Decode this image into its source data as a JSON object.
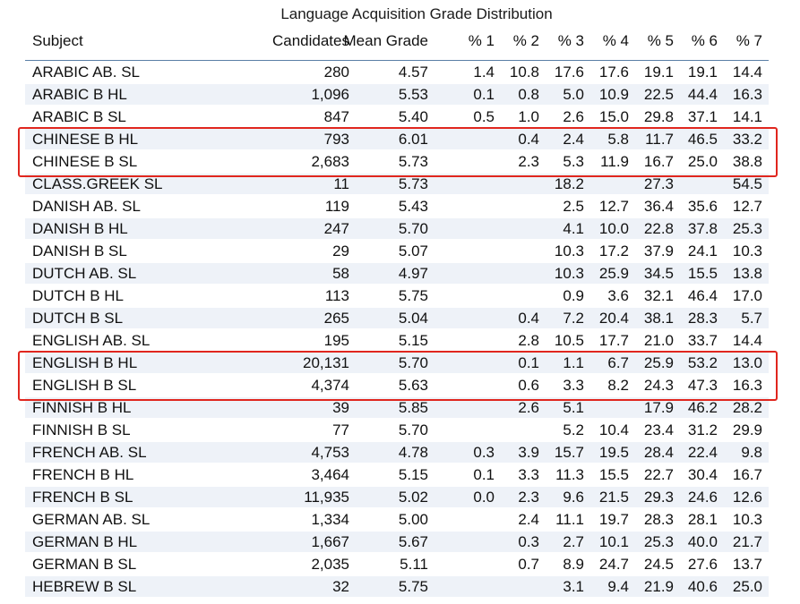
{
  "title": "Language Acquisition Grade Distribution",
  "headers": [
    "Subject",
    "Candidates",
    "Mean Grade",
    "% 1",
    "% 2",
    "% 3",
    "% 4",
    "% 5",
    "% 6",
    "% 7"
  ],
  "rows": [
    [
      "ARABIC AB. SL",
      "280",
      "4.57",
      "1.4",
      "10.8",
      "17.6",
      "17.6",
      "19.1",
      "19.1",
      "14.4"
    ],
    [
      "ARABIC B HL",
      "1,096",
      "5.53",
      "0.1",
      "0.8",
      "5.0",
      "10.9",
      "22.5",
      "44.4",
      "16.3"
    ],
    [
      "ARABIC B SL",
      "847",
      "5.40",
      "0.5",
      "1.0",
      "2.6",
      "15.0",
      "29.8",
      "37.1",
      "14.1"
    ],
    [
      "CHINESE B HL",
      "793",
      "6.01",
      "",
      "0.4",
      "2.4",
      "5.8",
      "11.7",
      "46.5",
      "33.2"
    ],
    [
      "CHINESE B SL",
      "2,683",
      "5.73",
      "",
      "2.3",
      "5.3",
      "11.9",
      "16.7",
      "25.0",
      "38.8"
    ],
    [
      "CLASS.GREEK SL",
      "11",
      "5.73",
      "",
      "",
      "18.2",
      "",
      "27.3",
      "",
      "54.5"
    ],
    [
      "DANISH AB. SL",
      "119",
      "5.43",
      "",
      "",
      "2.5",
      "12.7",
      "36.4",
      "35.6",
      "12.7"
    ],
    [
      "DANISH B HL",
      "247",
      "5.70",
      "",
      "",
      "4.1",
      "10.0",
      "22.8",
      "37.8",
      "25.3"
    ],
    [
      "DANISH B SL",
      "29",
      "5.07",
      "",
      "",
      "10.3",
      "17.2",
      "37.9",
      "24.1",
      "10.3"
    ],
    [
      "DUTCH AB. SL",
      "58",
      "4.97",
      "",
      "",
      "10.3",
      "25.9",
      "34.5",
      "15.5",
      "13.8"
    ],
    [
      "DUTCH B HL",
      "113",
      "5.75",
      "",
      "",
      "0.9",
      "3.6",
      "32.1",
      "46.4",
      "17.0"
    ],
    [
      "DUTCH B SL",
      "265",
      "5.04",
      "",
      "0.4",
      "7.2",
      "20.4",
      "38.1",
      "28.3",
      "5.7"
    ],
    [
      "ENGLISH AB. SL",
      "195",
      "5.15",
      "",
      "2.8",
      "10.5",
      "17.7",
      "21.0",
      "33.7",
      "14.4"
    ],
    [
      "ENGLISH B HL",
      "20,131",
      "5.70",
      "",
      "0.1",
      "1.1",
      "6.7",
      "25.9",
      "53.2",
      "13.0"
    ],
    [
      "ENGLISH B SL",
      "4,374",
      "5.63",
      "",
      "0.6",
      "3.3",
      "8.2",
      "24.3",
      "47.3",
      "16.3"
    ],
    [
      "FINNISH B HL",
      "39",
      "5.85",
      "",
      "2.6",
      "5.1",
      "",
      "17.9",
      "46.2",
      "28.2"
    ],
    [
      "FINNISH B SL",
      "77",
      "5.70",
      "",
      "",
      "5.2",
      "10.4",
      "23.4",
      "31.2",
      "29.9"
    ],
    [
      "FRENCH AB. SL",
      "4,753",
      "4.78",
      "0.3",
      "3.9",
      "15.7",
      "19.5",
      "28.4",
      "22.4",
      "9.8"
    ],
    [
      "FRENCH B HL",
      "3,464",
      "5.15",
      "0.1",
      "3.3",
      "11.3",
      "15.5",
      "22.7",
      "30.4",
      "16.7"
    ],
    [
      "FRENCH B SL",
      "11,935",
      "5.02",
      "0.0",
      "2.3",
      "9.6",
      "21.5",
      "29.3",
      "24.6",
      "12.6"
    ],
    [
      "GERMAN AB. SL",
      "1,334",
      "5.00",
      "",
      "2.4",
      "11.1",
      "19.7",
      "28.3",
      "28.1",
      "10.3"
    ],
    [
      "GERMAN B HL",
      "1,667",
      "5.67",
      "",
      "0.3",
      "2.7",
      "10.1",
      "25.3",
      "40.0",
      "21.7"
    ],
    [
      "GERMAN B SL",
      "2,035",
      "5.11",
      "",
      "0.7",
      "8.9",
      "24.7",
      "24.5",
      "27.6",
      "13.7"
    ],
    [
      "HEBREW B SL",
      "32",
      "5.75",
      "",
      "",
      "3.1",
      "9.4",
      "21.9",
      "40.6",
      "25.0"
    ]
  ],
  "highlight_color": "#e0261e",
  "row_stripe_color": "#eef2f8"
}
